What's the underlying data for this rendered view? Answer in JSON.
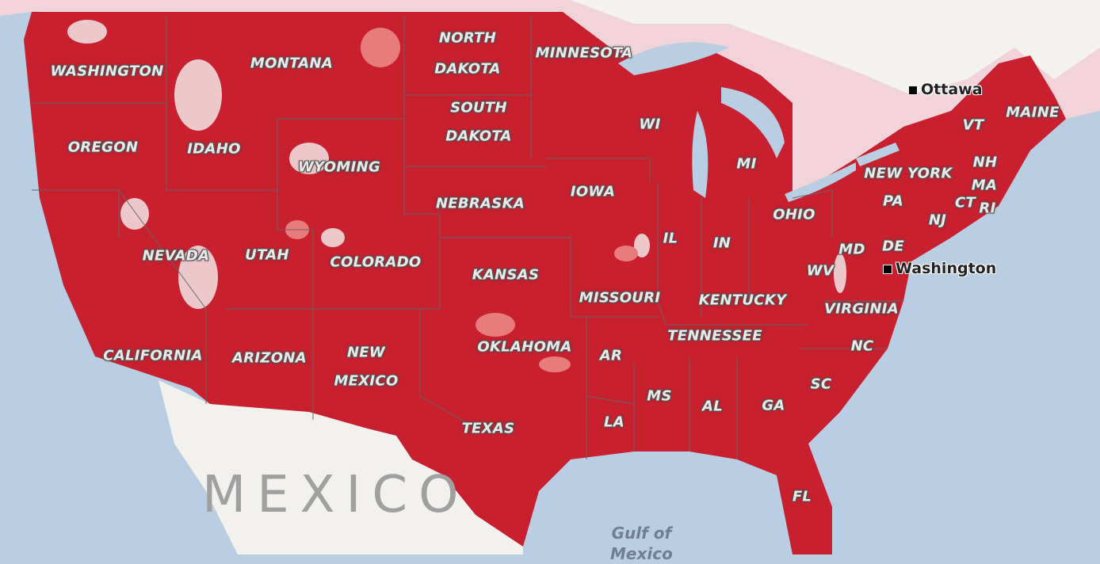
{
  "map": {
    "coverage_color": "#c8202e",
    "water_color": "#b9cde3",
    "land_color": "#f2f1ee",
    "canada_color": "#f2d3da",
    "states": [
      "WASHINGTON",
      "MONTANA",
      "NORTH",
      "DAKOTA",
      "MINNESOTA",
      "SOUTH",
      "DAKOTA",
      "OREGON",
      "IDAHO",
      "WYOMING",
      "WI",
      "MI",
      "IOWA",
      "NEBRASKA",
      "NEVADA",
      "UTAH",
      "COLORADO",
      "KANSAS",
      "IL",
      "IN",
      "OHIO",
      "NEW YORK",
      "PA",
      "NJ",
      "VT",
      "NH",
      "MA",
      "CT",
      "RI",
      "MAINE",
      "MD",
      "DE",
      "WV",
      "MISSOURI",
      "KENTUCKY",
      "VIRGINIA",
      "CALIFORNIA",
      "ARIZONA",
      "NEW",
      "MEXICO",
      "OKLAHOMA",
      "AR",
      "TENNESSEE",
      "NC",
      "SC",
      "MS",
      "AL",
      "GA",
      "LA",
      "TEXAS",
      "FL"
    ],
    "cities": [
      "Ottawa",
      "Washington"
    ],
    "country": "MEXICO",
    "water": [
      "Gulf of",
      "Mexico"
    ]
  }
}
